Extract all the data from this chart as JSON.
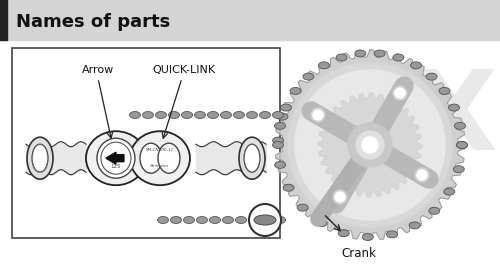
{
  "title": "Names of parts",
  "title_bar_color": "#d4d4d4",
  "title_bar_left_color": "#222222",
  "background_color": "#ffffff",
  "text_color": "#111111",
  "label_arrow": "Arrow",
  "label_quicklink": "QUICK-LINK",
  "label_crank": "Crank",
  "figsize": [
    5.0,
    2.76
  ],
  "dpi": 100,
  "chain_color": "#888888",
  "gear_color": "#c8c8c8",
  "gear_edge_color": "#999999",
  "line_color": "#222222"
}
